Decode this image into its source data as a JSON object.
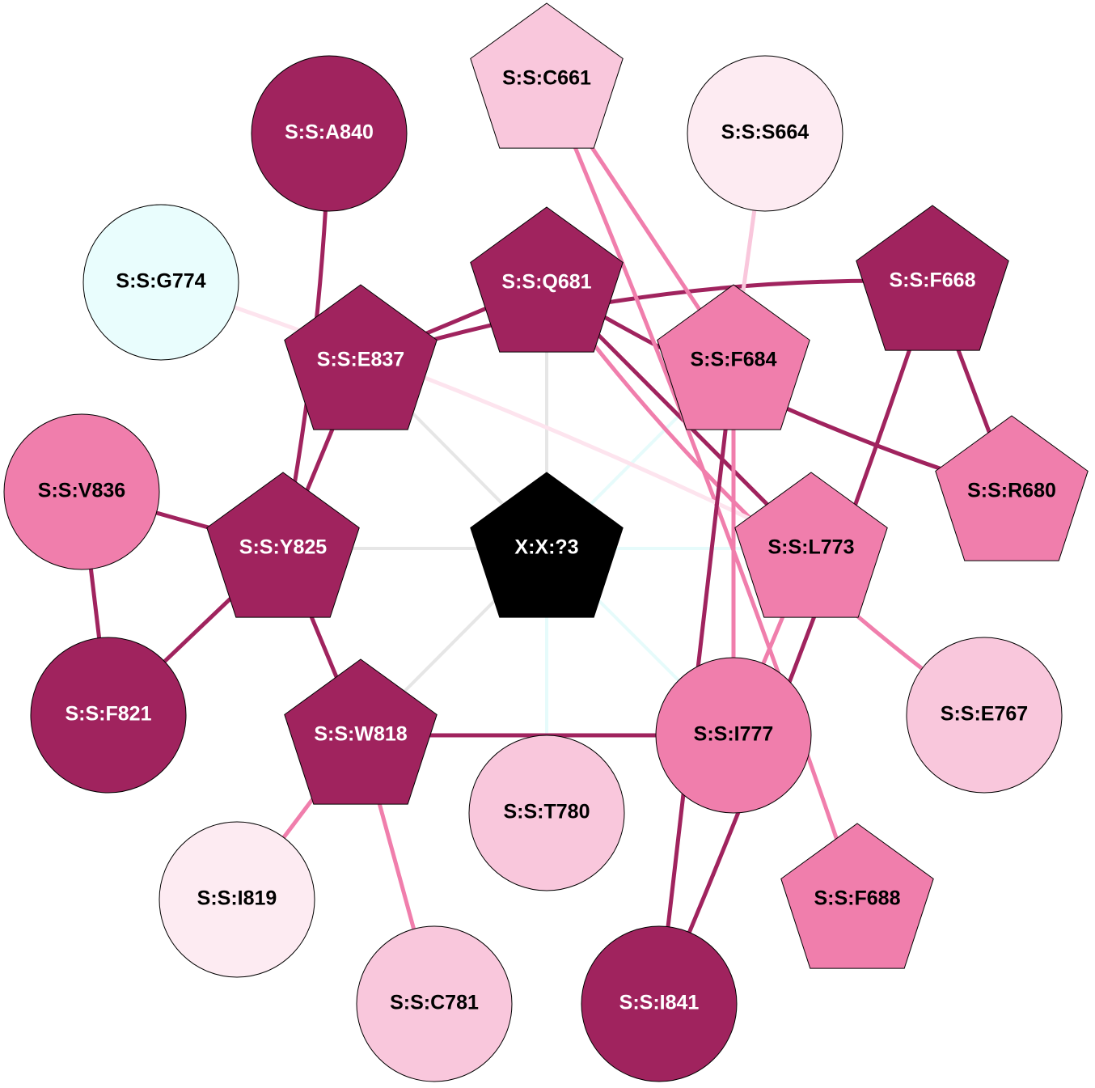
{
  "nodes": [
    {
      "label": "X:X:?3"
    },
    {
      "label": "S:S:C661"
    },
    {
      "label": "S:S:A840"
    },
    {
      "label": "S:S:S664"
    },
    {
      "label": "S:S:G774"
    },
    {
      "label": "S:S:Q681"
    },
    {
      "label": "S:S:F668"
    },
    {
      "label": "S:S:E837"
    },
    {
      "label": "S:S:F684"
    },
    {
      "label": "S:S:V836"
    },
    {
      "label": "S:S:R680"
    },
    {
      "label": "S:S:Y825"
    },
    {
      "label": "S:S:L773"
    },
    {
      "label": "S:S:F821"
    },
    {
      "label": "S:S:E767"
    },
    {
      "label": "S:S:W818"
    },
    {
      "label": "S:S:I777"
    },
    {
      "label": "S:S:T780"
    },
    {
      "label": "S:S:I819"
    },
    {
      "label": "S:S:F688"
    },
    {
      "label": "S:S:C781"
    },
    {
      "label": "S:S:I841"
    }
  ]
}
